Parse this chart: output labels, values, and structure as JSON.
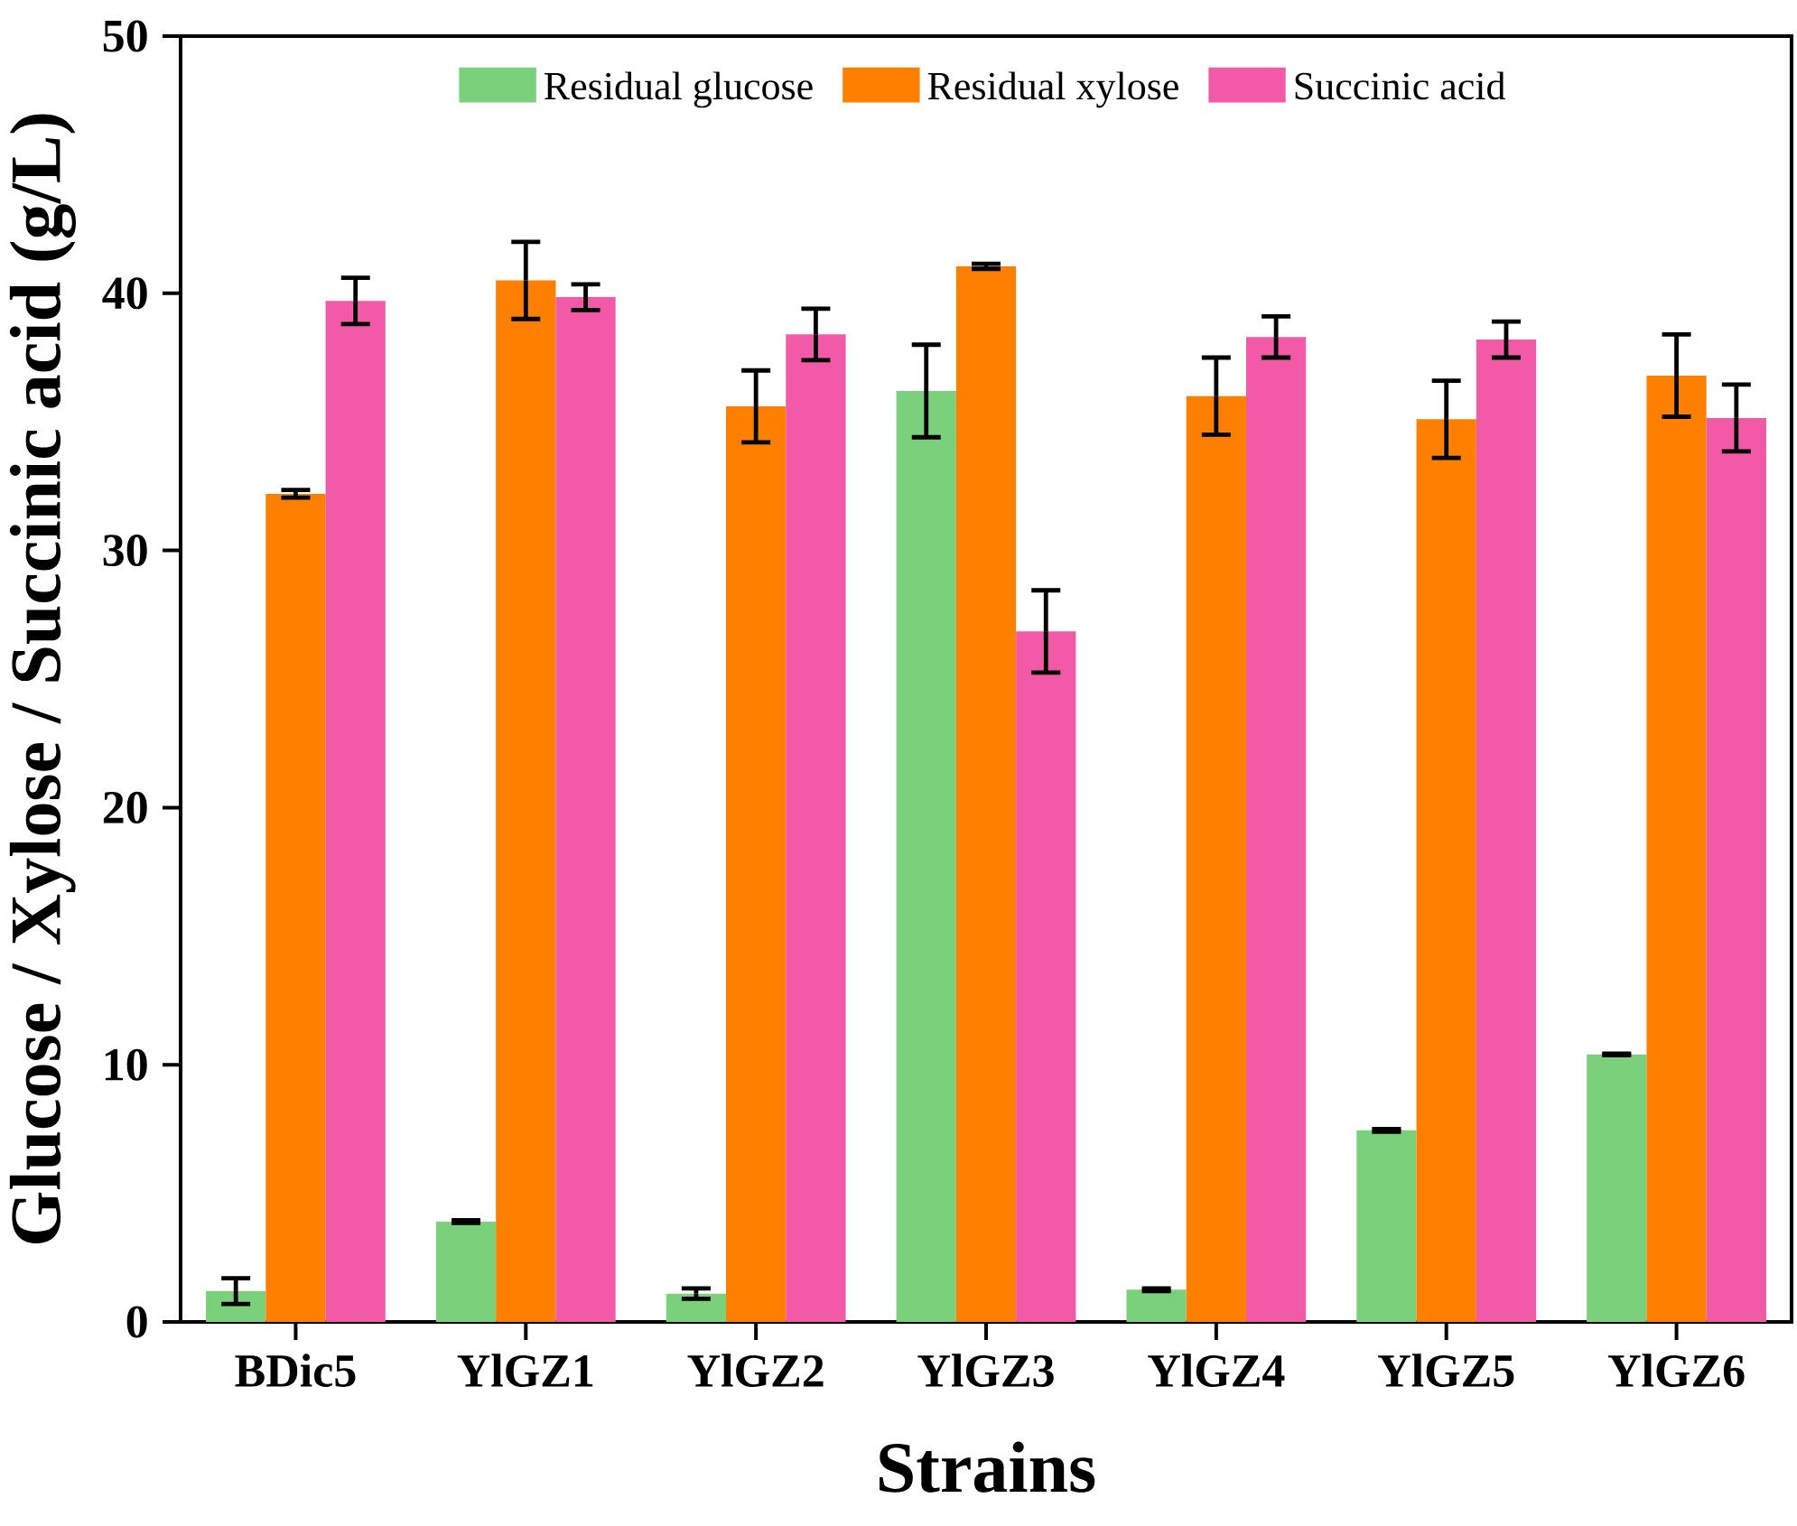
{
  "chart_data": {
    "type": "bar",
    "xlabel": "Strains",
    "ylabel": "Glucose / Xylose / Succinic acid (g/L)",
    "categories": [
      "BDic5",
      "YlGZ1",
      "YlGZ2",
      "YlGZ3",
      "YlGZ4",
      "YlGZ5",
      "YlGZ6"
    ],
    "series": [
      {
        "name": "Residual glucose",
        "color": "#7bd07b",
        "values": [
          1.2,
          3.9,
          1.1,
          36.2,
          1.25,
          7.45,
          10.4
        ],
        "errors": [
          0.5,
          0.05,
          0.2,
          1.8,
          0.05,
          0.05,
          0.03
        ]
      },
      {
        "name": "Residual xylose",
        "color": "#ff8000",
        "values": [
          32.2,
          40.5,
          35.6,
          41.05,
          36.0,
          35.1,
          36.8
        ],
        "errors": [
          0.15,
          1.5,
          1.4,
          0.1,
          1.5,
          1.5,
          1.6
        ]
      },
      {
        "name": "Succinic acid",
        "color": "#f25aa8",
        "values": [
          39.7,
          39.85,
          38.4,
          26.85,
          38.3,
          38.2,
          35.15
        ],
        "errors": [
          0.9,
          0.5,
          1.0,
          1.6,
          0.8,
          0.7,
          1.3
        ]
      }
    ],
    "ylim": [
      0,
      50
    ],
    "yticks": [
      0,
      10,
      20,
      30,
      40,
      50
    ],
    "grid": false,
    "legend": "top"
  }
}
